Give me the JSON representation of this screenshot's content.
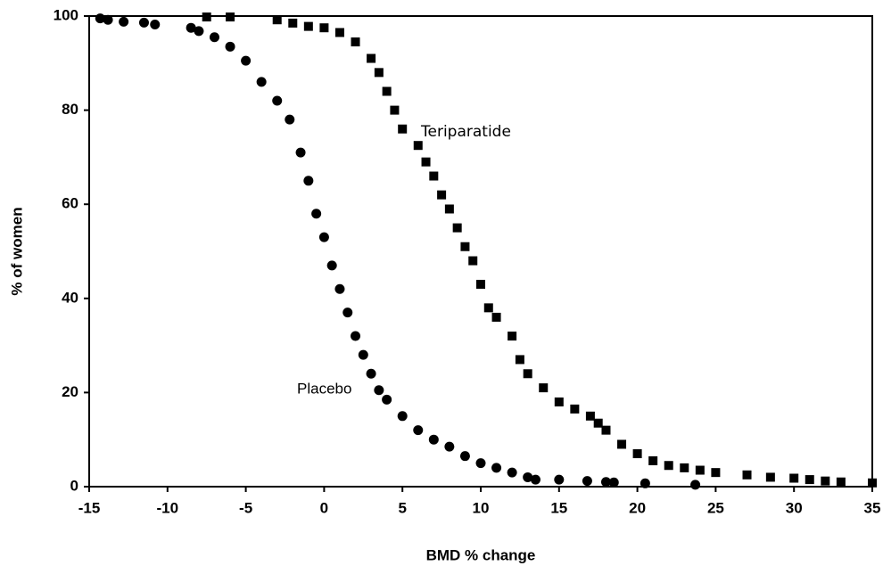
{
  "chart_data": {
    "type": "scatter",
    "xlabel": "BMD % change",
    "ylabel": "% of women",
    "xlim": [
      -15,
      35
    ],
    "xticks": [
      -15,
      -10,
      -5,
      0,
      5,
      10,
      15,
      20,
      25,
      30,
      35
    ],
    "ylim": [
      0,
      100
    ],
    "yticks": [
      0,
      20,
      40,
      60,
      80,
      100
    ],
    "grid": false,
    "annotations": [
      "Teriparatide",
      "Placebo"
    ],
    "series": [
      {
        "name": "Placebo",
        "marker": "circle",
        "color": "#000000",
        "x": [
          -14.3,
          -13.8,
          -12.8,
          -11.5,
          -10.8,
          -8.5,
          -8,
          -7,
          -6,
          -5,
          -4,
          -3,
          -2.2,
          -1.5,
          -1,
          -0.5,
          0,
          0.5,
          1,
          1.5,
          2,
          2.5,
          3,
          3.5,
          4,
          5,
          6,
          7,
          8,
          9,
          10,
          11,
          12,
          13,
          13.5,
          15,
          16.8,
          18,
          18.5,
          20.5,
          23.7
        ],
        "values": [
          99.5,
          99.2,
          98.8,
          98.6,
          98.2,
          97.5,
          96.8,
          95.5,
          93.5,
          90.5,
          86,
          82,
          78,
          71,
          65,
          58,
          53,
          47,
          42,
          37,
          32,
          28,
          24,
          20.5,
          18.5,
          15,
          12,
          10,
          8.5,
          6.5,
          5,
          4,
          3,
          2,
          1.5,
          1.5,
          1.2,
          1,
          0.9,
          0.7,
          0.4
        ]
      },
      {
        "name": "Teriparatide",
        "marker": "square",
        "color": "#000000",
        "x": [
          -7.5,
          -6,
          -3,
          -2,
          -1,
          0,
          1,
          2,
          3,
          3.5,
          4,
          4.5,
          5,
          6,
          6.5,
          7,
          7.5,
          8,
          8.5,
          9,
          9.5,
          10,
          10.5,
          11,
          12,
          12.5,
          13,
          14,
          15,
          16,
          17,
          17.5,
          18,
          19,
          20,
          21,
          22,
          23,
          24,
          25,
          27,
          28.5,
          30,
          31,
          32,
          33,
          35
        ],
        "values": [
          99.8,
          99.8,
          99.2,
          98.5,
          97.8,
          97.5,
          96.5,
          94.5,
          91,
          88,
          84,
          80,
          76,
          72.5,
          69,
          66,
          62,
          59,
          55,
          51,
          48,
          43,
          38,
          36,
          32,
          27,
          24,
          21,
          18,
          16.5,
          15,
          13.5,
          12,
          9,
          7,
          5.5,
          4.5,
          4,
          3.5,
          3,
          2.5,
          2,
          1.8,
          1.5,
          1.2,
          1,
          0.8
        ]
      }
    ]
  }
}
